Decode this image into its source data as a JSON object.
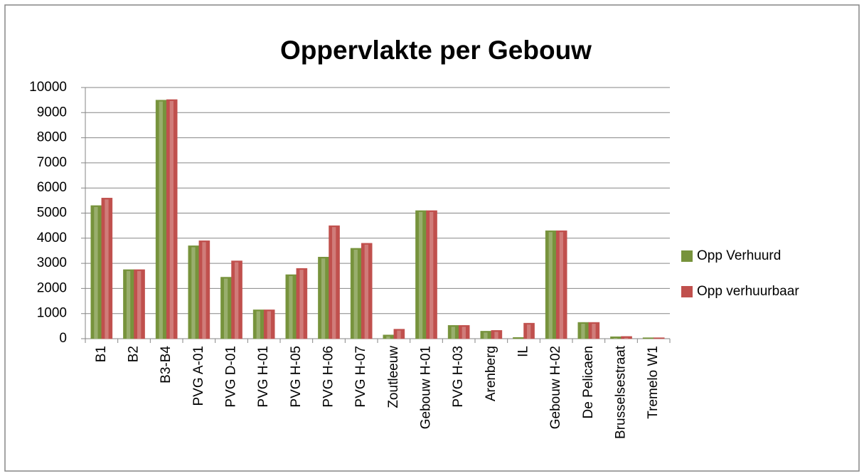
{
  "chart_data": {
    "type": "bar",
    "title": "Oppervlakte per Gebouw",
    "categories": [
      "B1",
      "B2",
      "B3-B4",
      "PVG A-01",
      "PVG D-01",
      "PVG H-01",
      "PVG H-05",
      "PVG H-06",
      "PVG H-07",
      "Zoutleeuw",
      "Gebouw H-01",
      "PVG H-03",
      "Arenberg",
      "IL",
      "Gebouw H-02",
      "De Pelicaen",
      "Brusselsestraat",
      "Tremelo W1"
    ],
    "series": [
      {
        "name": "Opp Verhuurd",
        "color": "#77933c",
        "values": [
          5300,
          2750,
          9500,
          3700,
          2450,
          1150,
          2550,
          3250,
          3600,
          150,
          5100,
          530,
          300,
          50,
          4300,
          650,
          80,
          40
        ]
      },
      {
        "name": "Opp verhuurbaar",
        "color": "#c0504d",
        "values": [
          5600,
          2750,
          9520,
          3900,
          3100,
          1150,
          2800,
          4500,
          3800,
          380,
          5100,
          530,
          330,
          620,
          4300,
          650,
          90,
          40
        ]
      }
    ],
    "ylim": [
      0,
      10000
    ],
    "yticks": [
      0,
      1000,
      2000,
      3000,
      4000,
      5000,
      6000,
      7000,
      8000,
      9000,
      10000
    ],
    "grid": true,
    "legend": "right"
  }
}
